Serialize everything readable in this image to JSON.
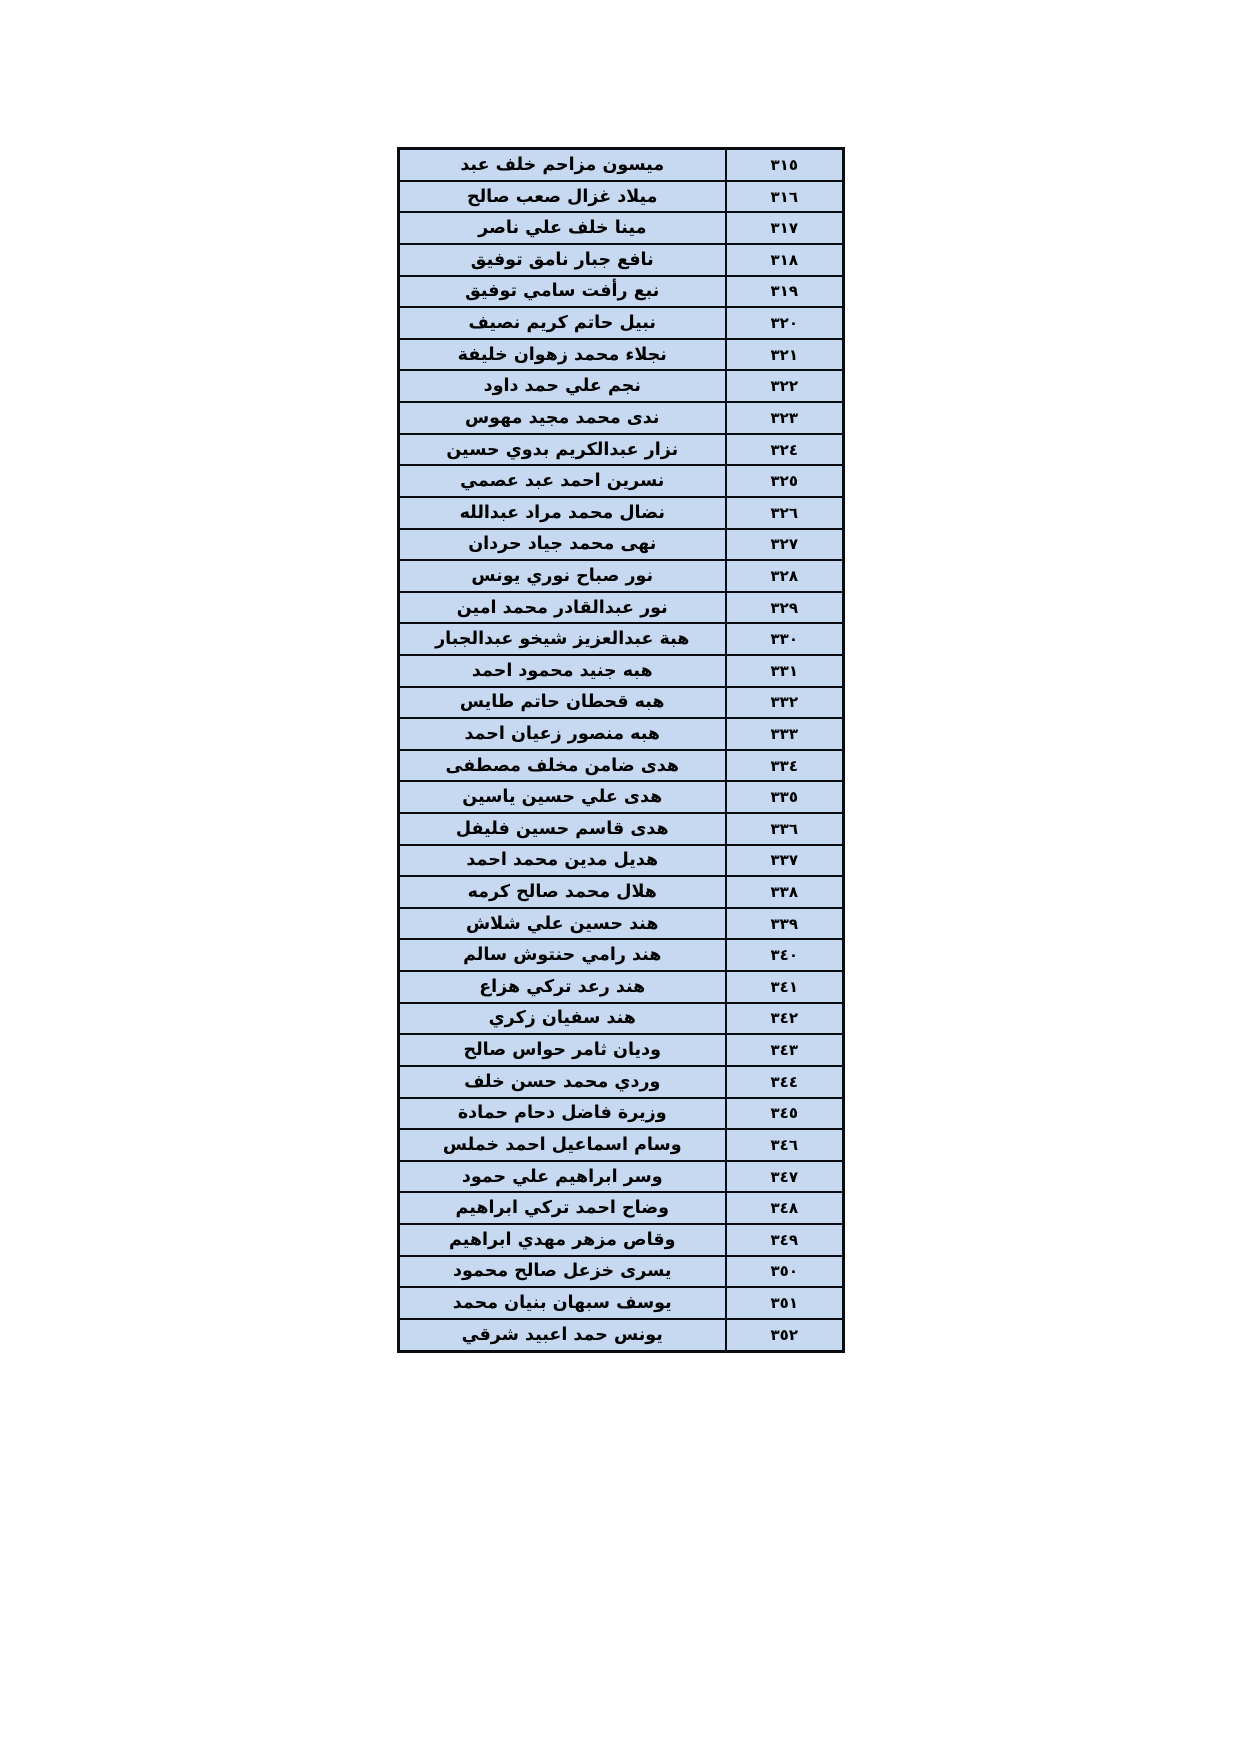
{
  "page": {
    "kind": "scanned-name-list",
    "language": "ar",
    "direction": "rtl"
  },
  "colors": {
    "page_bg": "#ffffff",
    "cell_fill": "#c6d9f0",
    "border_color": "#0b0b12",
    "text_color": "#000000"
  },
  "table": {
    "columns": [
      "name",
      "number"
    ],
    "rows": [
      {
        "no": "٣١٥",
        "name": "ميسون مزاحم خلف عبد"
      },
      {
        "no": "٣١٦",
        "name": "ميلاد غزال صعب صالح"
      },
      {
        "no": "٣١٧",
        "name": "مينا خلف علي ناصر"
      },
      {
        "no": "٣١٨",
        "name": "نافع جبار نامق توفيق"
      },
      {
        "no": "٣١٩",
        "name": "نبع رأفت سامي توفيق"
      },
      {
        "no": "٣٢٠",
        "name": "نبيل حاتم كريم نصيف"
      },
      {
        "no": "٣٢١",
        "name": "نجلاء محمد زهوان خليفة"
      },
      {
        "no": "٣٢٢",
        "name": "نجم علي حمد داود"
      },
      {
        "no": "٣٢٣",
        "name": "ندى محمد مجيد مهوس"
      },
      {
        "no": "٣٢٤",
        "name": "نزار عبدالكريم بدوي حسين"
      },
      {
        "no": "٣٢٥",
        "name": "نسرين احمد عبد عصمي"
      },
      {
        "no": "٣٢٦",
        "name": "نضال محمد مراد عبدالله"
      },
      {
        "no": "٣٢٧",
        "name": "نهى محمد جياد حردان"
      },
      {
        "no": "٣٢٨",
        "name": "نور صباح نوري يونس"
      },
      {
        "no": "٣٢٩",
        "name": "نور عبدالقادر محمد امين"
      },
      {
        "no": "٣٣٠",
        "name": "هبة عبدالعزيز شيخو عبدالجبار"
      },
      {
        "no": "٣٣١",
        "name": "هبه جنيد محمود احمد"
      },
      {
        "no": "٣٣٢",
        "name": "هبه قحطان حاتم طايس"
      },
      {
        "no": "٣٣٣",
        "name": "هبه منصور زعيان احمد"
      },
      {
        "no": "٣٣٤",
        "name": "هدى ضامن مخلف مصطفى"
      },
      {
        "no": "٣٣٥",
        "name": "هدى علي حسين ياسين"
      },
      {
        "no": "٣٣٦",
        "name": "هدى قاسم حسين فليفل"
      },
      {
        "no": "٣٣٧",
        "name": "هديل مدين محمد احمد"
      },
      {
        "no": "٣٣٨",
        "name": "هلال محمد صالح كرمه"
      },
      {
        "no": "٣٣٩",
        "name": "هند حسين علي شلاش"
      },
      {
        "no": "٣٤٠",
        "name": "هند رامي حنتوش سالم"
      },
      {
        "no": "٣٤١",
        "name": "هند رعد تركي هزاع"
      },
      {
        "no": "٣٤٢",
        "name": "هند سفيان زكري"
      },
      {
        "no": "٣٤٣",
        "name": "وديان ثامر حواس صالح"
      },
      {
        "no": "٣٤٤",
        "name": "وردي محمد حسن خلف"
      },
      {
        "no": "٣٤٥",
        "name": "وزيرة فاضل دحام حمادة"
      },
      {
        "no": "٣٤٦",
        "name": "وسام اسماعيل احمد خملس"
      },
      {
        "no": "٣٤٧",
        "name": "وسر ابراهيم علي حمود"
      },
      {
        "no": "٣٤٨",
        "name": "وضاح احمد تركي ابراهيم"
      },
      {
        "no": "٣٤٩",
        "name": "وقاص مزهر مهدي ابراهيم"
      },
      {
        "no": "٣٥٠",
        "name": "يسرى خزعل صالح محمود"
      },
      {
        "no": "٣٥١",
        "name": "يوسف سبهان بنيان محمد"
      },
      {
        "no": "٣٥٢",
        "name": "يونس حمد اعبيد شرقي"
      }
    ]
  }
}
